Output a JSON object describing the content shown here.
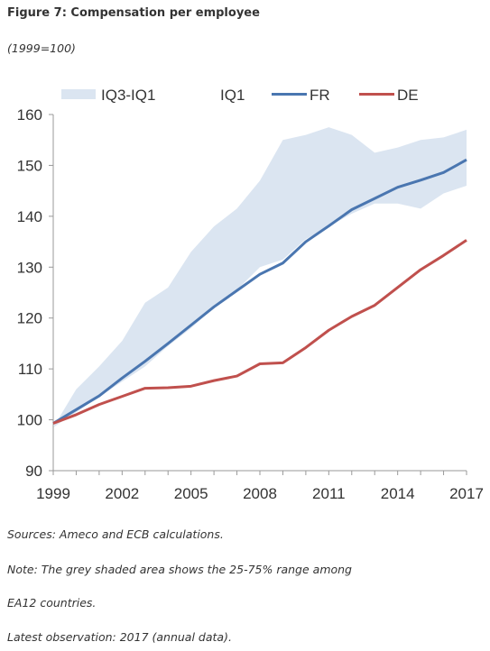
{
  "figure": {
    "title": "Figure 7: Compensation per employee",
    "subtitle": "(1999=100)"
  },
  "legend": {
    "band": "IQ3-IQ1",
    "iq1": "IQ1",
    "fr": "FR",
    "de": "DE"
  },
  "colors": {
    "band": "#dbe5f1",
    "fr": "#4a76b0",
    "de": "#c0504d",
    "axis": "#999999",
    "tick_text": "#333333"
  },
  "chart_data": {
    "type": "line",
    "title": "Compensation per employee",
    "xlabel": "",
    "ylabel": "",
    "xlim": [
      1999,
      2017
    ],
    "ylim": [
      90,
      160
    ],
    "y_ticks": [
      90,
      100,
      110,
      120,
      130,
      140,
      150,
      160
    ],
    "x_ticks": [
      1999,
      2002,
      2005,
      2008,
      2011,
      2014,
      2017
    ],
    "x": [
      1999,
      2000,
      2001,
      2002,
      2003,
      2004,
      2005,
      2006,
      2007,
      2008,
      2009,
      2010,
      2011,
      2012,
      2013,
      2014,
      2015,
      2016,
      2017
    ],
    "band": {
      "name": "IQ3-IQ1",
      "upper": [
        98.5,
        106,
        110.5,
        115.5,
        123,
        126,
        133,
        138,
        141.5,
        147,
        155,
        156,
        157.5,
        156,
        152.5,
        153.5,
        155,
        155.5,
        157
      ],
      "lower": [
        98.5,
        101.5,
        104.5,
        107.5,
        110.5,
        114.5,
        118,
        122,
        125.5,
        130,
        131.5,
        135.5,
        138,
        140.5,
        142.5,
        142.5,
        141.5,
        144.5,
        146
      ]
    },
    "series": [
      {
        "name": "FR",
        "color": "#4a76b0",
        "values": [
          99.3,
          102,
          104.7,
          108.2,
          111.5,
          115,
          118.6,
          122.2,
          125.4,
          128.6,
          130.8,
          135,
          138.1,
          141.3,
          143.5,
          145.7,
          147.1,
          148.6,
          151.1
        ]
      },
      {
        "name": "DE",
        "color": "#c0504d",
        "values": [
          99.3,
          101,
          103,
          104.6,
          106.2,
          106.3,
          106.6,
          107.7,
          108.6,
          111,
          111.2,
          114.2,
          117.6,
          120.3,
          122.5,
          126,
          129.5,
          132.3,
          135.3
        ]
      }
    ],
    "grid": false,
    "legend_position": "top"
  },
  "notes": {
    "sources": "Sources: Ameco and ECB calculations.",
    "note_line1": "Note: The grey shaded area shows the 25-75% range among",
    "note_line2": "EA12 countries.",
    "latest": "Latest observation: 2017 (annual data)."
  }
}
